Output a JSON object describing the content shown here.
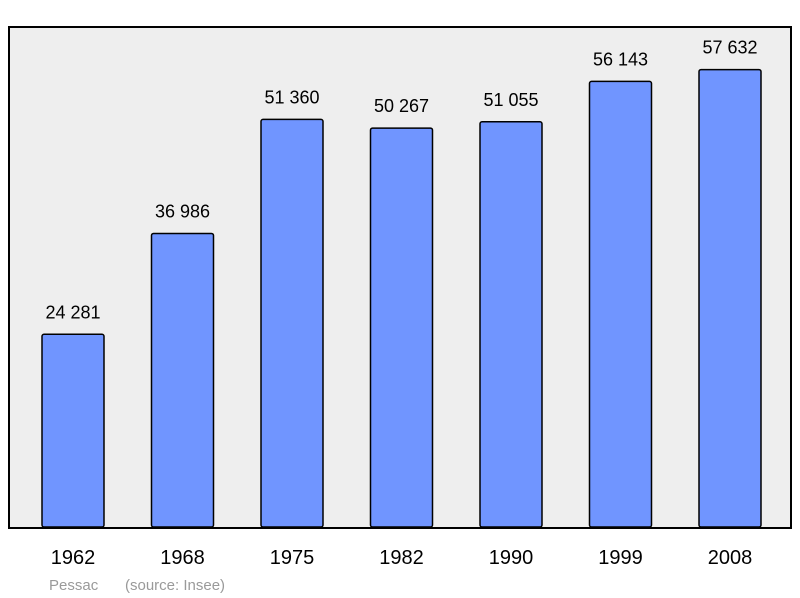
{
  "chart_data": {
    "type": "bar",
    "categories": [
      "1962",
      "1968",
      "1975",
      "1982",
      "1990",
      "1999",
      "2008"
    ],
    "values": [
      24281,
      36986,
      51360,
      50267,
      51055,
      56143,
      57632
    ],
    "data_labels": [
      "24 281",
      "36 986",
      "51 360",
      "50 267",
      "51 055",
      "56 143",
      "57 632"
    ],
    "title": "",
    "xlabel": "",
    "ylabel": "",
    "ylim": [
      0,
      63000
    ],
    "grid": false,
    "legend": "none",
    "colors": {
      "bar_fill": "#7095ff",
      "bar_stroke": "#000000",
      "plot_background": "#eeeeee",
      "plot_border": "#000000"
    }
  },
  "footer": {
    "place": "Pessac",
    "source": "(source: Insee)"
  }
}
